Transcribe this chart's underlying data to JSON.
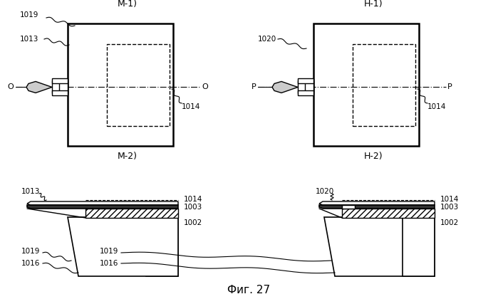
{
  "bg": "#ffffff",
  "lc": "#000000",
  "title": "Фиг. 27",
  "M1_label": "М-1)",
  "N1_label": "Н-1)",
  "M2_label": "М-2)",
  "N2_label": "Н-2)"
}
